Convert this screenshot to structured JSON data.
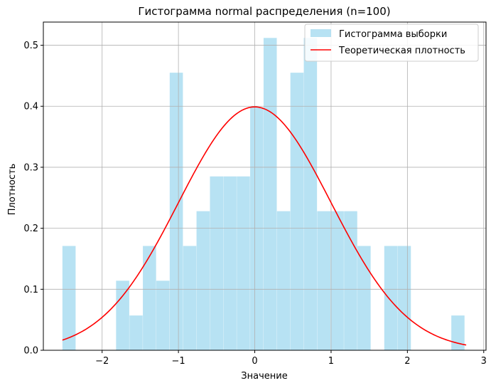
{
  "chart_data": {
    "type": "bar",
    "title": "Гистограмма normal распределения (n=100)",
    "xlabel": "Значение",
    "ylabel": "Плотность",
    "xlim": [
      -2.77,
      3.03
    ],
    "ylim": [
      0,
      0.538
    ],
    "xticks": [
      -2,
      -1,
      0,
      1,
      2,
      3
    ],
    "yticks": [
      0.0,
      0.1,
      0.2,
      0.3,
      0.4,
      0.5
    ],
    "grid": true,
    "legend": "top-right",
    "histogram": {
      "name": "Гистограмма выборки",
      "color": "#87ceeb",
      "bin_start": -2.52,
      "bin_width": 0.1757,
      "values": [
        0.171,
        0.0,
        0.0,
        0.0,
        0.114,
        0.057,
        0.171,
        0.114,
        0.455,
        0.171,
        0.228,
        0.285,
        0.285,
        0.285,
        0.398,
        0.512,
        0.228,
        0.455,
        0.512,
        0.228,
        0.228,
        0.228,
        0.171,
        0.0,
        0.171,
        0.171,
        0.0,
        0.0,
        0.0,
        0.057
      ]
    },
    "density": {
      "name": "Теоретическая плотность",
      "color": "#ff0000",
      "mean": 0,
      "std": 1,
      "x_range": [
        -2.52,
        2.77
      ]
    }
  }
}
